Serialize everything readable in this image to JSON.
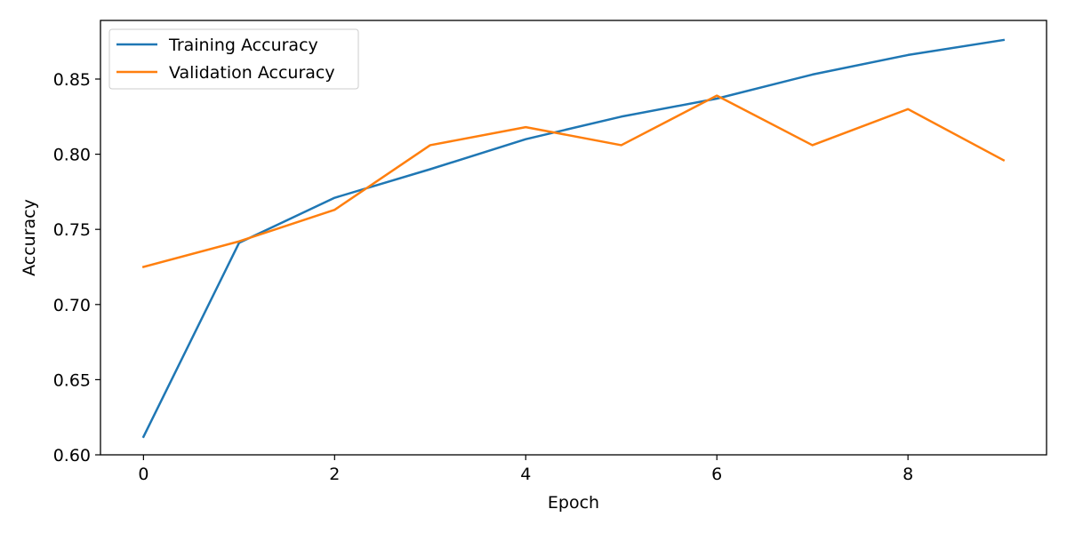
{
  "chart_data": {
    "type": "line",
    "title": "",
    "xlabel": "Epoch",
    "ylabel": "Accuracy",
    "x": [
      0,
      1,
      2,
      3,
      4,
      5,
      6,
      7,
      8,
      9
    ],
    "xlim": [
      -0.45,
      9.45
    ],
    "ylim": [
      0.6,
      0.889
    ],
    "xticks": [
      0,
      2,
      4,
      6,
      8
    ],
    "xtick_labels": [
      "0",
      "2",
      "4",
      "6",
      "8"
    ],
    "yticks": [
      0.6,
      0.65,
      0.7,
      0.75,
      0.8,
      0.85
    ],
    "ytick_labels": [
      "0.60",
      "0.65",
      "0.70",
      "0.75",
      "0.80",
      "0.85"
    ],
    "grid": false,
    "legend_position": "top-left",
    "series": [
      {
        "name": "Training Accuracy",
        "color": "#1f77b4",
        "values": [
          0.612,
          0.741,
          0.771,
          0.79,
          0.81,
          0.825,
          0.837,
          0.853,
          0.866,
          0.876
        ]
      },
      {
        "name": "Validation Accuracy",
        "color": "#ff7f0e",
        "values": [
          0.725,
          0.742,
          0.763,
          0.806,
          0.818,
          0.806,
          0.839,
          0.806,
          0.83,
          0.796
        ]
      }
    ]
  }
}
